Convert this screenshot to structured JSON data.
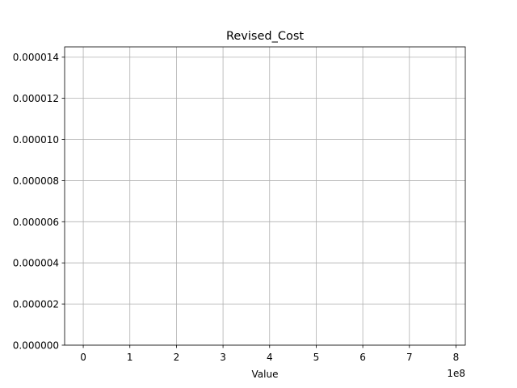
{
  "chart_data": {
    "type": "histogram",
    "title": "Revised_Cost",
    "xlabel": "Value",
    "ylabel": "",
    "x_scale_label": "1e8",
    "xlim": [
      -0.4,
      8.2
    ],
    "ylim": [
      0,
      1.45e-05
    ],
    "x_ticks": [
      0,
      1,
      2,
      3,
      4,
      5,
      6,
      7,
      8
    ],
    "x_tick_labels": [
      "0",
      "1",
      "2",
      "3",
      "4",
      "5",
      "6",
      "7",
      "8"
    ],
    "y_ticks": [
      0,
      2e-06,
      4e-06,
      6e-06,
      8e-06,
      1e-05,
      1.2e-05,
      1.4e-05
    ],
    "y_tick_labels": [
      "0.000000",
      "0.000002",
      "0.000004",
      "0.000006",
      "0.000008",
      "0.000010",
      "0.000012",
      "0.000014"
    ],
    "grid": true,
    "series": [],
    "colors": {
      "grid": "#b0b0b0",
      "axis": "#000000",
      "background": "#ffffff"
    }
  }
}
